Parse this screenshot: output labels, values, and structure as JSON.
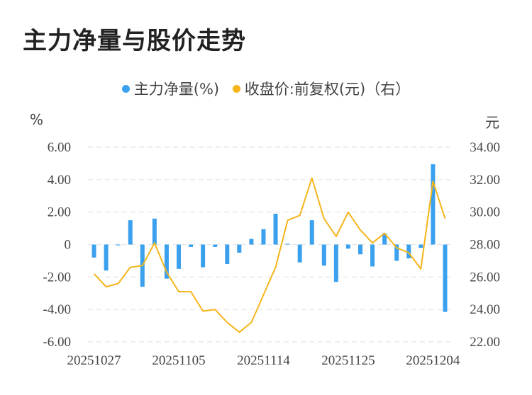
{
  "title": "主力净量与股价走势",
  "legend": {
    "series1": "主力净量(%)",
    "series2": "收盘价:前复权(元)（右）"
  },
  "units": {
    "left": "%",
    "right": "元"
  },
  "colors": {
    "bar": "#3ba1ee",
    "line": "#f5b51b",
    "grid": "#e3e3e3"
  },
  "chart_data": {
    "type": "bar",
    "dates": [
      "20251027",
      "20251028",
      "20251029",
      "20251030",
      "20251031",
      "20251103",
      "20251104",
      "20251105",
      "20251106",
      "20251107",
      "20251110",
      "20251111",
      "20251112",
      "20251113",
      "20251114",
      "20251117",
      "20251118",
      "20251119",
      "20251120",
      "20251121",
      "20251124",
      "20251125",
      "20251126",
      "20251127",
      "20251128",
      "20251201",
      "20251202",
      "20251203",
      "20251204",
      "20251205"
    ],
    "x_tick_labels": [
      "20251027",
      "20251105",
      "20251114",
      "20251125",
      "20251204"
    ],
    "series": [
      {
        "name": "主力净量(%)",
        "axis": "left",
        "kind": "bar",
        "values": [
          -0.8,
          -1.6,
          -0.05,
          1.5,
          -2.6,
          1.6,
          -2.1,
          -1.5,
          -0.15,
          -1.4,
          -0.15,
          -1.2,
          -0.5,
          0.35,
          0.95,
          1.9,
          0.05,
          -1.1,
          1.5,
          -1.3,
          -2.3,
          -0.25,
          -0.6,
          -1.35,
          0.7,
          -1.0,
          -0.85,
          -0.2,
          4.95,
          -4.15
        ]
      },
      {
        "name": "收盘价:前复权(元)（右）",
        "axis": "right",
        "kind": "line",
        "values": [
          26.2,
          25.4,
          25.6,
          26.6,
          26.7,
          28.1,
          26.3,
          25.1,
          25.1,
          23.9,
          24.0,
          23.2,
          22.6,
          23.2,
          24.9,
          26.6,
          29.5,
          29.8,
          32.1,
          29.6,
          28.5,
          30.0,
          28.9,
          28.1,
          28.7,
          27.8,
          27.5,
          26.5,
          31.9,
          29.6
        ]
      }
    ],
    "y_left": {
      "ticks": [
        "6.00",
        "4.00",
        "2.00",
        "0",
        "-2.00",
        "-4.00",
        "-6.00"
      ],
      "range": [
        -6,
        6
      ]
    },
    "y_right": {
      "ticks": [
        "34.00",
        "32.00",
        "30.00",
        "28.00",
        "26.00",
        "24.00",
        "22.00"
      ],
      "range": [
        22,
        34
      ]
    },
    "grid": true,
    "legend_position": "top-center"
  }
}
